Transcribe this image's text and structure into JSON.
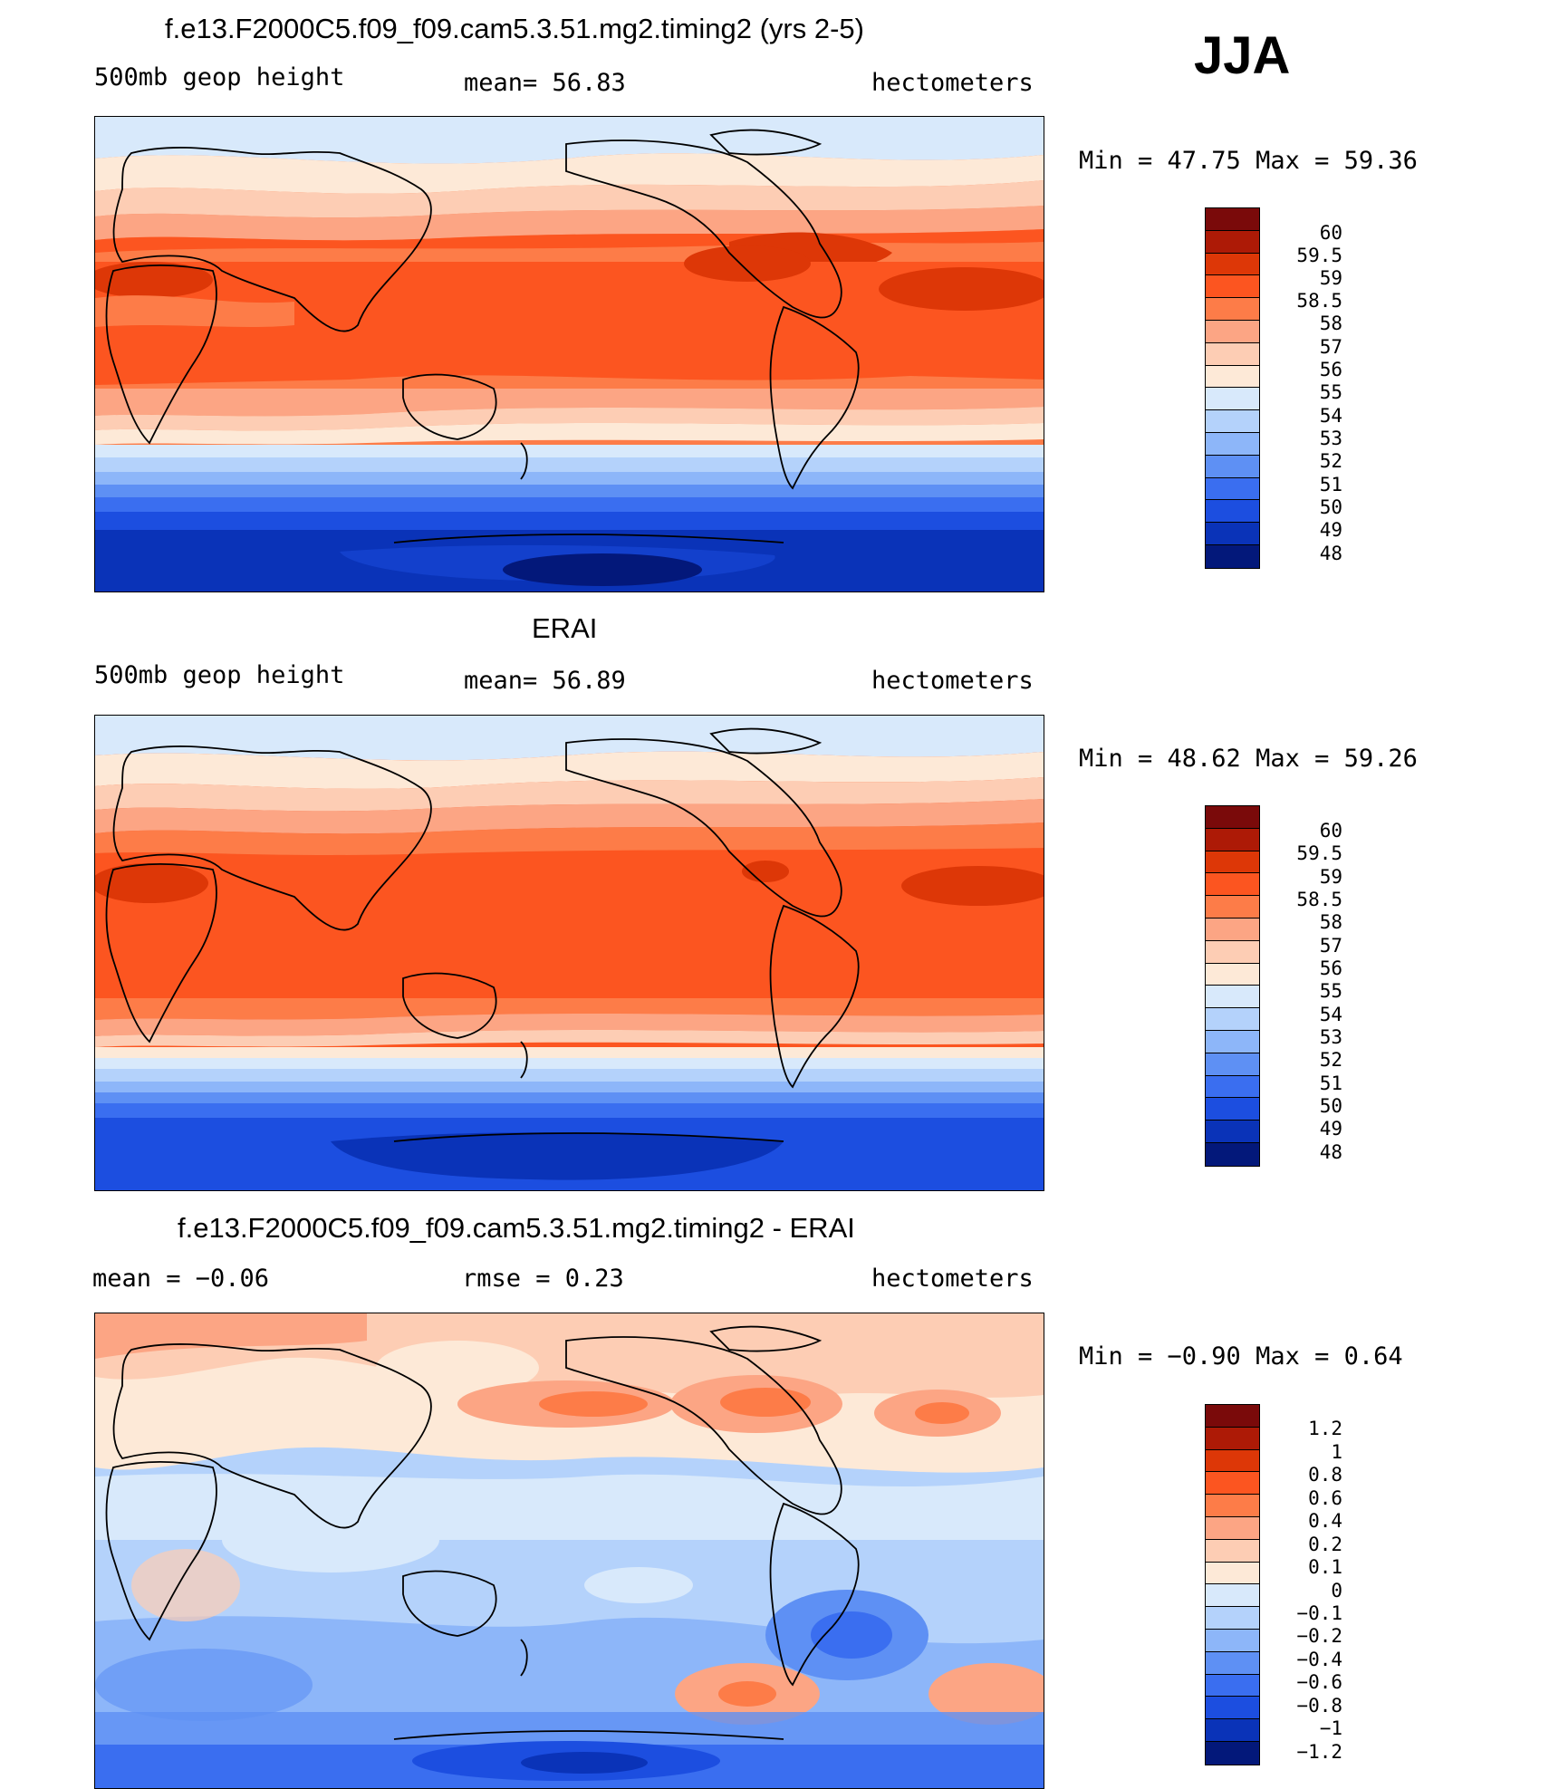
{
  "season": "JJA",
  "panels": [
    {
      "id": "model",
      "title": "f.e13.F2000C5.f09_f09.cam5.3.51.mg2.timing2 (yrs 2-5)",
      "left_label": "500mb geop height",
      "center_label": "mean=  56.83",
      "right_label": "hectometers",
      "minmax": "Min =   47.75 Max =   59.36",
      "colorbar_labels": [
        "60",
        "59.5",
        "59",
        "58.5",
        "58",
        "57",
        "56",
        "55",
        "54",
        "53",
        "52",
        "51",
        "50",
        "49",
        "48"
      ]
    },
    {
      "id": "obs",
      "title": "ERAI",
      "left_label": "500mb geop height",
      "center_label": "mean=  56.89",
      "right_label": "hectometers",
      "minmax": "Min =   48.62 Max =   59.26",
      "colorbar_labels": [
        "60",
        "59.5",
        "59",
        "58.5",
        "58",
        "57",
        "56",
        "55",
        "54",
        "53",
        "52",
        "51",
        "50",
        "49",
        "48"
      ]
    },
    {
      "id": "diff",
      "title": "f.e13.F2000C5.f09_f09.cam5.3.51.mg2.timing2 - ERAI",
      "left_label": "mean =   −0.06",
      "center_label": "rmse =    0.23",
      "right_label": "hectometers",
      "minmax": "Min =   −0.90 Max =    0.64",
      "colorbar_labels": [
        "1.2",
        "1",
        "0.8",
        "0.6",
        "0.4",
        "0.2",
        "0.1",
        "0",
        "−0.1",
        "−0.2",
        "−0.4",
        "−0.6",
        "−0.8",
        "−1",
        "−1.2"
      ]
    }
  ],
  "colors": {
    "height_scale": [
      "#7a0a0a",
      "#ad1a06",
      "#dd3707",
      "#fc5520",
      "#fd7c48",
      "#fca584",
      "#fdcdb4",
      "#fde9d7",
      "#d8e9fb",
      "#b4d2fb",
      "#8db6f9",
      "#5e90f4",
      "#3a6ef0",
      "#1c4ee0",
      "#0a33b8",
      "#03187a"
    ],
    "diff_scale": [
      "#7a0a0a",
      "#ad1a06",
      "#dd3707",
      "#fc5520",
      "#fd7c48",
      "#fca584",
      "#fdcdb4",
      "#fde9d7",
      "#d8e9fb",
      "#b4d2fb",
      "#8db6f9",
      "#5e90f4",
      "#3a6ef0",
      "#1c4ee0",
      "#0a33b8",
      "#03187a"
    ]
  }
}
